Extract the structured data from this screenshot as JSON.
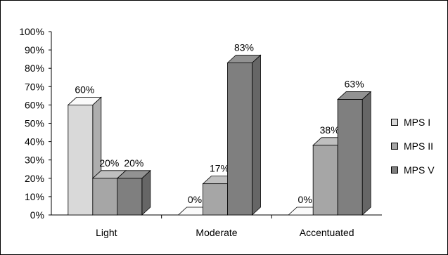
{
  "chart_data": {
    "type": "bar",
    "categories": [
      "Light",
      "Moderate",
      "Accentuated"
    ],
    "series": [
      {
        "name": "MPS I",
        "values": [
          60,
          0,
          0
        ],
        "color": "#d9d9d9"
      },
      {
        "name": "MPS II",
        "values": [
          20,
          17,
          38
        ],
        "color": "#a6a6a6"
      },
      {
        "name": "MPS V",
        "values": [
          20,
          83,
          63
        ],
        "color": "#7f7f7f"
      }
    ],
    "data_labels": [
      [
        "60%",
        "0%",
        "0%"
      ],
      [
        "20%",
        "17%",
        "38%"
      ],
      [
        "20%",
        "83%",
        "63%"
      ]
    ],
    "y_ticks": [
      "0%",
      "10%",
      "20%",
      "30%",
      "40%",
      "50%",
      "60%",
      "70%",
      "80%",
      "90%",
      "100%"
    ],
    "ylim": [
      0,
      100
    ],
    "grid": false,
    "legend": "right",
    "title": "",
    "xlabel": "",
    "ylabel": ""
  },
  "legend": {
    "items": [
      {
        "label": "MPS I",
        "color": "#d9d9d9"
      },
      {
        "label": "MPS II",
        "color": "#a6a6a6"
      },
      {
        "label": "MPS V",
        "color": "#7f7f7f"
      }
    ]
  }
}
